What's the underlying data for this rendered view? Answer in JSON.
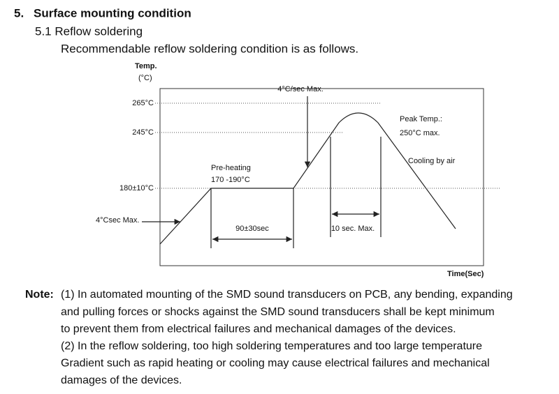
{
  "section": {
    "number": "5.",
    "title": "Surface mounting condition"
  },
  "subsection": {
    "title": "5.1 Reflow soldering",
    "intro": "Recommendable reflow soldering condition is as follows."
  },
  "diagram": {
    "y_axis_title": "Temp.",
    "y_axis_unit": "(°C)",
    "x_axis_title": "Time(Sec)",
    "levels": [
      "265°C",
      "245°C",
      "180±10°C"
    ],
    "preheat_label": "Pre-heating",
    "preheat_range": "170 -190°C",
    "ramp_up_label": "4°C/sec Max.",
    "start_ramp_label": "4°Csec Max.",
    "peak_label": "Peak Temp.:",
    "peak_value": "250°C max.",
    "cooling_label": "Cooling by air",
    "preheat_time": "90±30sec",
    "peak_time": "10 sec. Max."
  },
  "note": {
    "label": "Note:",
    "lines": [
      "(1) In automated mounting of the SMD sound transducers on PCB, any bending, expanding",
      "and pulling forces or shocks against the SMD sound transducers shall be kept minimum",
      "to prevent them from electrical failures and mechanical damages of the devices.",
      "(2) In the reflow soldering, too high soldering temperatures and too large temperature",
      "Gradient such as rapid heating or cooling may cause electrical failures and mechanical",
      "damages of the devices."
    ]
  }
}
